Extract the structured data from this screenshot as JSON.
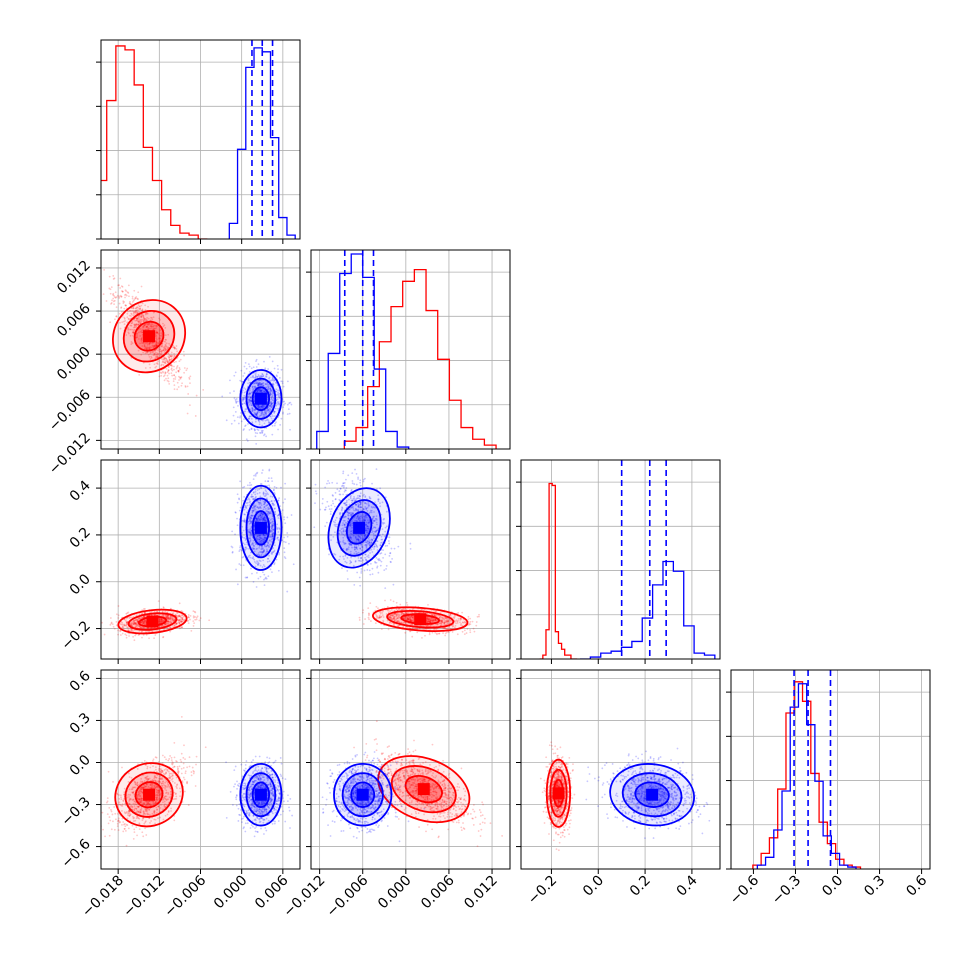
{
  "chart_data": {
    "type": "corner",
    "title": "",
    "grid": true,
    "parameters": [
      "",
      "",
      "",
      ""
    ],
    "series": [
      {
        "color": "#ff0000",
        "means": [
          -0.013,
          0.002,
          -0.17,
          -0.22
        ],
        "stds": [
          0.0025,
          0.0033,
          0.025,
          0.12
        ],
        "hist_counts": [
          [
            0.3,
            0.71,
            0.99,
            0.97,
            0.79,
            0.47,
            0.3,
            0.15,
            0.07,
            0.03,
            0.02,
            0.0
          ],
          [
            0.04,
            0.11,
            0.32,
            0.55,
            0.73,
            0.86,
            0.92,
            0.71,
            0.46,
            0.25,
            0.11,
            0.05,
            0.02
          ],
          [
            0.0,
            0.02,
            0.15,
            0.9,
            0.89,
            0.14,
            0.08,
            0.05,
            0.02,
            0.02,
            0.0,
            0.0
          ],
          [
            0.02,
            0.08,
            0.16,
            0.41,
            0.8,
            0.96,
            0.86,
            0.49,
            0.24,
            0.13,
            0.05,
            0.02,
            0.01
          ]
        ]
      },
      {
        "color": "#0000ff",
        "means": [
          0.003,
          -0.006,
          0.21,
          -0.22
        ],
        "stds": [
          0.0015,
          0.002,
          0.09,
          0.11
        ],
        "quantiles_lines": [
          [
            0.0015,
            0.003,
            0.0045
          ],
          [
            -0.0085,
            -0.006,
            -0.0045
          ],
          [
            0.1,
            0.22,
            0.29
          ],
          [
            -0.31,
            -0.21,
            -0.05
          ]
        ],
        "hist_counts": [
          [
            0.08,
            0.46,
            0.88,
            0.98,
            0.96,
            0.52,
            0.11,
            0.02
          ],
          [
            0.09,
            0.49,
            0.9,
            1.0,
            0.88,
            0.41,
            0.09,
            0.01
          ],
          [
            0.0,
            0.01,
            0.03,
            0.04,
            0.06,
            0.09,
            0.21,
            0.38,
            0.5,
            0.45,
            0.17,
            0.03,
            0.02
          ],
          [
            0.02,
            0.06,
            0.2,
            0.4,
            0.83,
            0.95,
            0.74,
            0.45,
            0.17,
            0.08,
            0.02,
            0.01
          ]
        ]
      }
    ],
    "axes": {
      "p0": {
        "range": [
          -0.0205,
          0.0085
        ],
        "ticks": [
          -0.018,
          -0.012,
          -0.006,
          0.0,
          0.006
        ],
        "tick_labels": [
          "−0.018",
          "−0.012",
          "−0.006",
          "0.000",
          "0.006"
        ]
      },
      "p1": {
        "range": [
          -0.0132,
          0.0145
        ],
        "ticks": [
          -0.012,
          -0.006,
          0.0,
          0.006,
          0.012
        ],
        "tick_labels": [
          "−0.012",
          "−0.006",
          "0.000",
          "0.006",
          "0.012"
        ]
      },
      "p2": {
        "range": [
          -0.33,
          0.52
        ],
        "ticks": [
          -0.2,
          0.0,
          0.2,
          0.4
        ],
        "tick_labels": [
          "−0.2",
          "0.0",
          "0.2",
          "0.4"
        ]
      },
      "p3": {
        "range": [
          -0.76,
          0.66
        ],
        "ticks": [
          -0.6,
          -0.3,
          0.0,
          0.3,
          0.6
        ],
        "tick_labels": [
          "−0.6",
          "−0.3",
          "0.0",
          "0.3",
          "0.6"
        ]
      }
    },
    "scatter_panels": [
      {
        "x": "p0",
        "y": "p1",
        "red": {
          "center": [
            -0.0135,
            0.0025
          ],
          "tilt": "negative"
        },
        "blue": {
          "center": [
            0.0028,
            -0.0062
          ],
          "tilt": "flat"
        }
      },
      {
        "x": "p0",
        "y": "p2",
        "red": {
          "center": [
            -0.013,
            -0.17
          ]
        },
        "blue": {
          "center": [
            0.0028,
            0.23
          ]
        }
      },
      {
        "x": "p1",
        "y": "p2",
        "red": {
          "center": [
            0.002,
            -0.16
          ]
        },
        "blue": {
          "center": [
            -0.0065,
            0.23
          ]
        }
      },
      {
        "x": "p0",
        "y": "p3",
        "red": {
          "center": [
            -0.0135,
            -0.23
          ]
        },
        "blue": {
          "center": [
            0.0028,
            -0.23
          ]
        }
      },
      {
        "x": "p1",
        "y": "p3",
        "red": {
          "center": [
            0.0025,
            -0.19
          ]
        },
        "blue": {
          "center": [
            -0.006,
            -0.23
          ]
        }
      },
      {
        "x": "p2",
        "y": "p3",
        "red": {
          "center": [
            -0.17,
            -0.22
          ]
        },
        "blue": {
          "center": [
            0.23,
            -0.23
          ]
        }
      }
    ]
  }
}
